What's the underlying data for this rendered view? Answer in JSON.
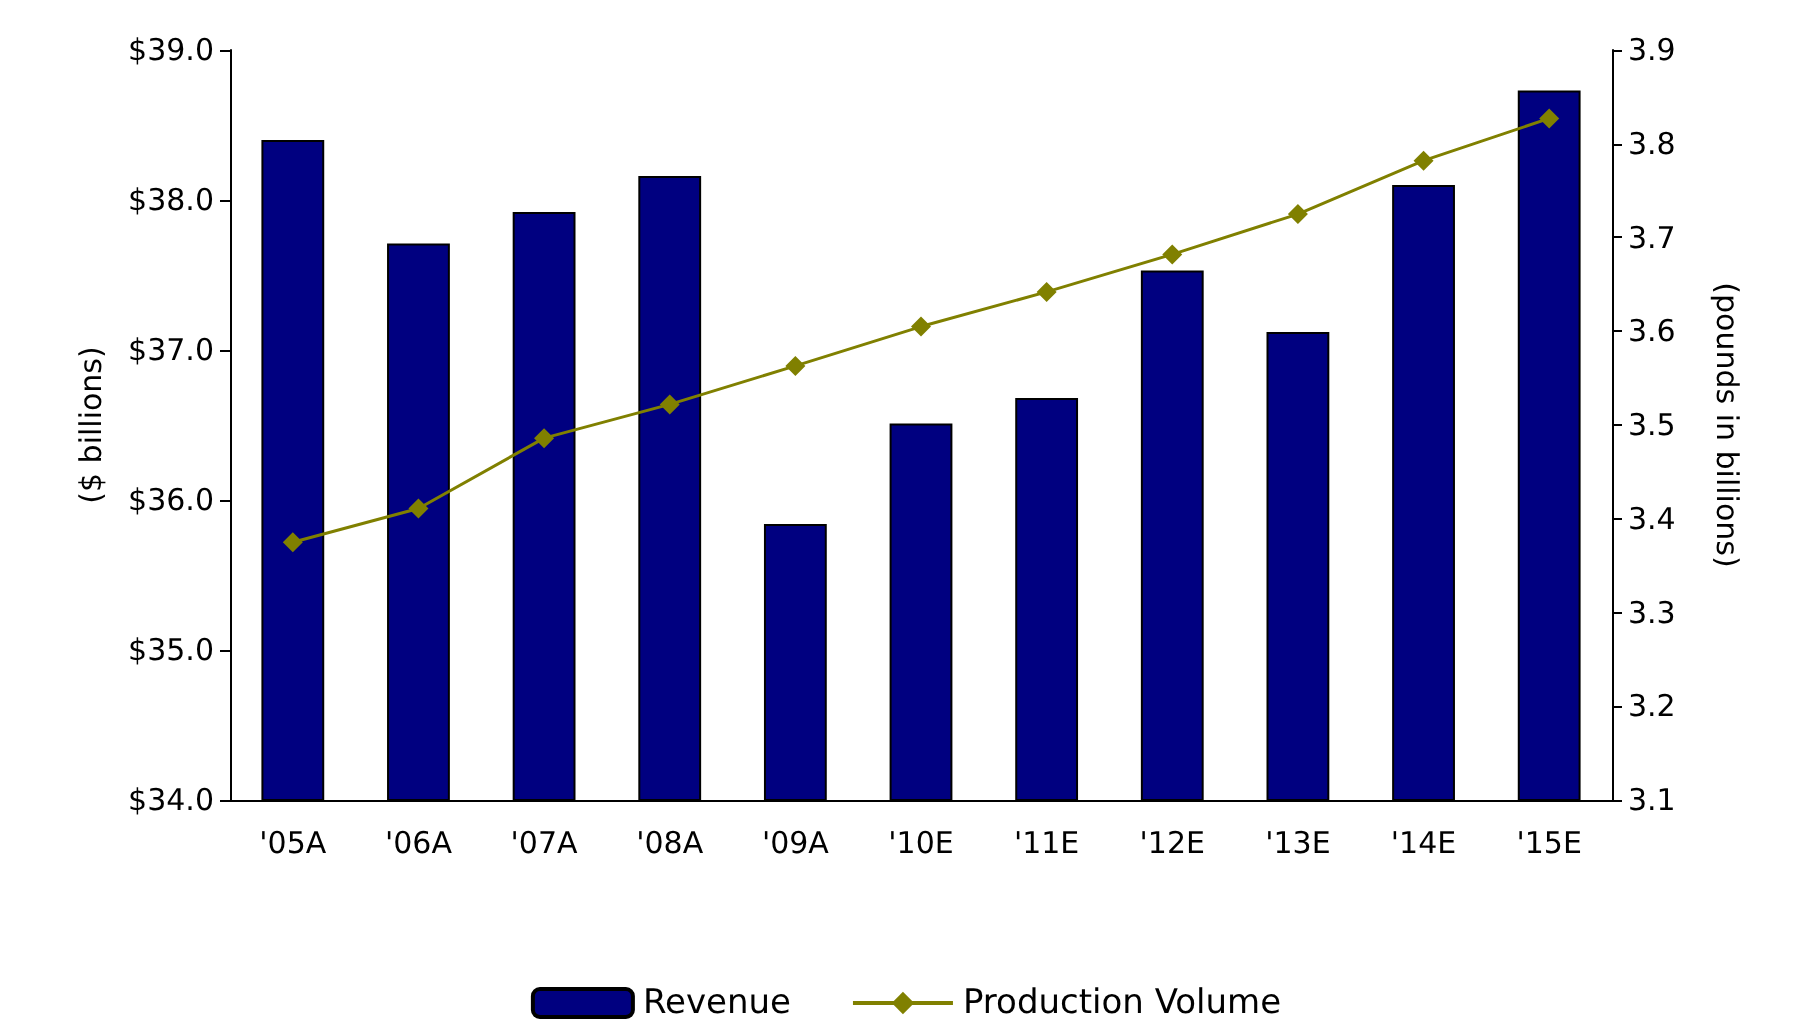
{
  "chart_data": {
    "type": "bar",
    "ylabel": "($ billions)",
    "y2label": "(pounds in billions)",
    "categories": [
      "'05A",
      "'06A",
      "'07A",
      "'08A",
      "'09A",
      "'10E",
      "'11E",
      "'12E",
      "'13E",
      "'14E",
      "'15E"
    ],
    "series": [
      {
        "name": "Revenue",
        "color": "#000080",
        "values": [
          38.4,
          37.71,
          37.92,
          38.16,
          35.84,
          36.51,
          36.68,
          37.53,
          37.12,
          38.1,
          38.73
        ]
      },
      {
        "name": "Production Volume",
        "type": "line",
        "axis": "y2",
        "color": "#808000",
        "marker": "diamond",
        "values": [
          3.375,
          3.411,
          3.486,
          3.522,
          3.563,
          3.605,
          3.642,
          3.682,
          3.725,
          3.782,
          3.827
        ]
      }
    ],
    "ylim": [
      34,
      39
    ],
    "yticks": [
      {
        "value": 34,
        "label": "$34.0"
      },
      {
        "value": 35,
        "label": "$35.0"
      },
      {
        "value": 36,
        "label": "$36.0"
      },
      {
        "value": 37,
        "label": "$37.0"
      },
      {
        "value": 38,
        "label": "$38.0"
      },
      {
        "value": 39,
        "label": "$39.0"
      }
    ],
    "y2lim": [
      3.1,
      3.9
    ],
    "y2ticks": [
      3.1,
      3.2,
      3.3,
      3.4,
      3.5,
      3.6,
      3.7,
      3.8,
      3.9
    ],
    "grid": false,
    "legend": "bottom"
  }
}
